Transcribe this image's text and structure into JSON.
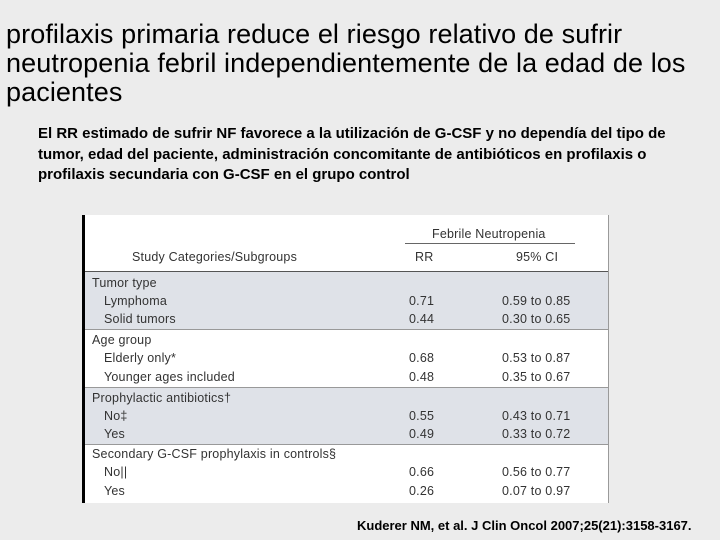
{
  "slide": {
    "title": "profilaxis primaria reduce el riesgo relativo de sufrir neutropenia febril independientemente de la edad de los pacientes",
    "subtitle": "El RR estimado de sufrir NF favorece a la utilización de G-CSF y no dependía del tipo de tumor, edad del paciente, administración concomitante de antibióticos en profilaxis o profilaxis secundaria con G-CSF en el grupo control",
    "citation": "Kuderer NM, et al. J Clin Oncol 2007;25(21):3158-3167."
  },
  "table": {
    "group_header": "Febrile Neutropenia",
    "col_subgroups": "Study Categories/Subgroups",
    "col_rr": "RR",
    "col_ci": "95% CI",
    "groups": [
      {
        "title": "Tumor type",
        "rows": [
          {
            "label": "Lymphoma",
            "rr": "0.71",
            "ci": "0.59 to 0.85"
          },
          {
            "label": "Solid tumors",
            "rr": "0.44",
            "ci": "0.30 to 0.65"
          }
        ]
      },
      {
        "title": "Age group",
        "rows": [
          {
            "label": "Elderly only*",
            "rr": "0.68",
            "ci": "0.53 to 0.87"
          },
          {
            "label": "Younger ages included",
            "rr": "0.48",
            "ci": "0.35 to 0.67"
          }
        ]
      },
      {
        "title": "Prophylactic antibiotics†",
        "rows": [
          {
            "label": "No‡",
            "rr": "0.55",
            "ci": "0.43 to 0.71"
          },
          {
            "label": "Yes",
            "rr": "0.49",
            "ci": "0.33 to 0.72"
          }
        ]
      },
      {
        "title": "Secondary G-CSF prophylaxis in controls§",
        "rows": [
          {
            "label": "No||",
            "rr": "0.66",
            "ci": "0.56 to 0.77"
          },
          {
            "label": "Yes",
            "rr": "0.26",
            "ci": "0.07 to 0.97"
          }
        ]
      }
    ]
  }
}
